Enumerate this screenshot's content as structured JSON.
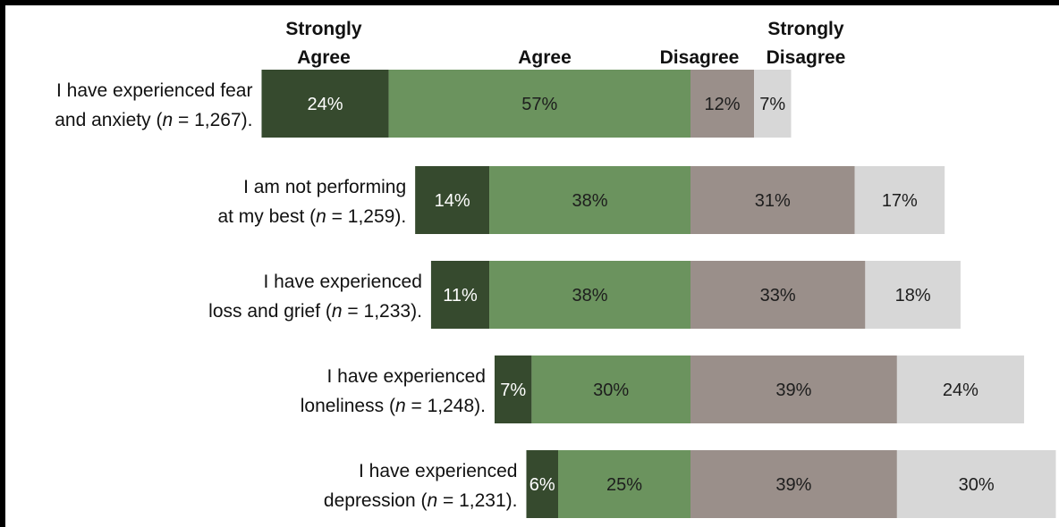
{
  "chart_data": {
    "type": "bar",
    "orientation": "horizontal",
    "stacked": true,
    "diverging": true,
    "value_unit": "%",
    "legend": [
      {
        "name": "Strongly Agree",
        "lines": [
          "Strongly",
          "Agree"
        ],
        "color": "#364a2e"
      },
      {
        "name": "Agree",
        "lines": [
          "Agree"
        ],
        "color": "#6b935e"
      },
      {
        "name": "Disagree",
        "lines": [
          "Disagree"
        ],
        "color": "#9a8f8a"
      },
      {
        "name": "Strongly Disagree",
        "lines": [
          "Strongly",
          "Disagree"
        ],
        "color": "#d7d7d7"
      }
    ],
    "categories": [
      {
        "lines": [
          "I have experienced fear",
          "and anxiety (",
          "n",
          " = 1,267)."
        ]
      },
      {
        "lines": [
          "I am not performing",
          "at my best (",
          "n",
          " = 1,259)."
        ]
      },
      {
        "lines": [
          "I have experienced",
          "loss and grief (",
          "n",
          " = 1,233)."
        ]
      },
      {
        "lines": [
          "I have experienced",
          "loneliness (",
          "n",
          " = 1,248)."
        ]
      },
      {
        "lines": [
          "I have experienced",
          "depression (",
          "n",
          " = 1,231)."
        ]
      }
    ],
    "series": [
      {
        "name": "Strongly Agree",
        "values": [
          24,
          14,
          11,
          7,
          6
        ],
        "labels": [
          "24%",
          "14%",
          "11%",
          "7%",
          "6%"
        ]
      },
      {
        "name": "Agree",
        "values": [
          57,
          38,
          38,
          30,
          25
        ],
        "labels": [
          "57%",
          "38%",
          "38%",
          "30%",
          "25%"
        ]
      },
      {
        "name": "Disagree",
        "values": [
          12,
          31,
          33,
          39,
          39
        ],
        "labels": [
          "12%",
          "31%",
          "33%",
          "39%",
          "39%"
        ]
      },
      {
        "name": "Strongly Disagree",
        "values": [
          7,
          17,
          18,
          24,
          30
        ],
        "labels": [
          "7%",
          "17%",
          "18%",
          "24%",
          "30%"
        ]
      }
    ]
  }
}
